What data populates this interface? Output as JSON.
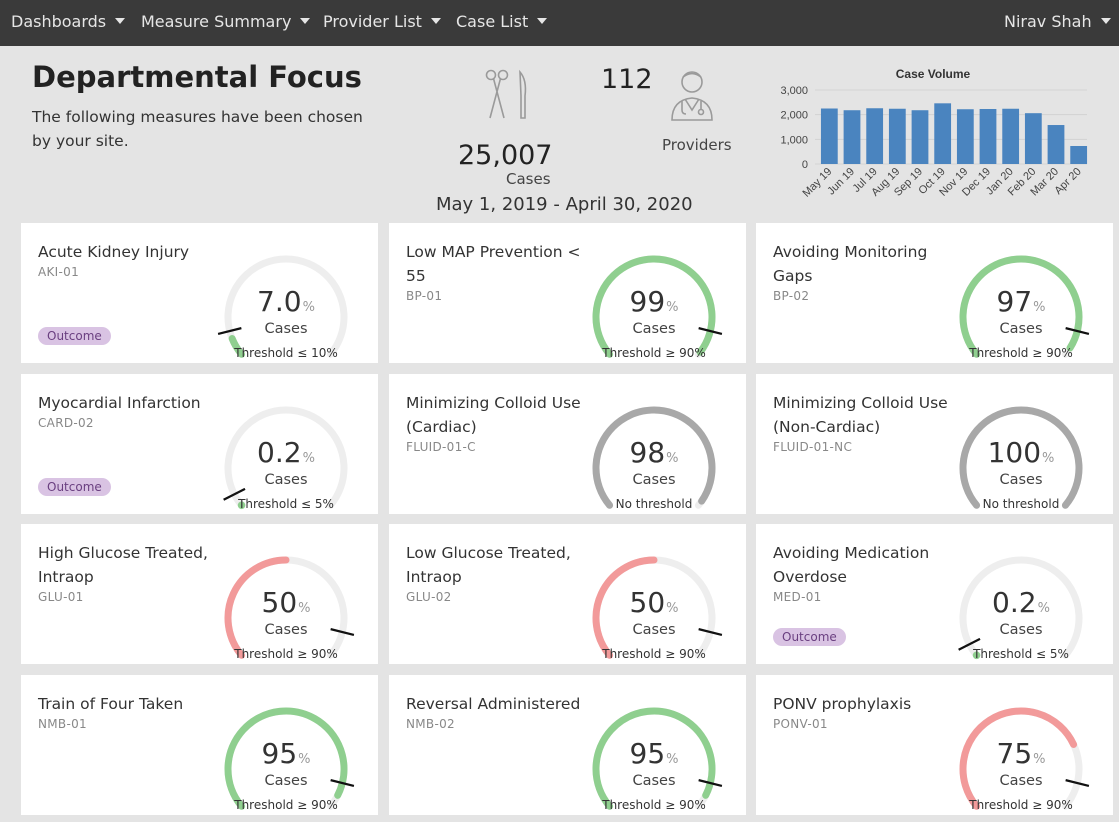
{
  "nav": {
    "items": [
      {
        "label": "Dashboards"
      },
      {
        "label": "Measure Summary"
      },
      {
        "label": "Provider List"
      },
      {
        "label": "Case List"
      }
    ],
    "user": "Nirav Shah"
  },
  "header": {
    "title": "Departmental Focus",
    "subtitle": "The following measures have been chosen by your site.",
    "cases_count": "25,007",
    "cases_label": "Cases",
    "providers_count": "112",
    "providers_label": "Providers",
    "date_range": "May 1, 2019 - April 30, 2020",
    "icons": {
      "cases": "surgical-instruments-icon",
      "providers": "doctor-icon"
    }
  },
  "chart_data": {
    "type": "bar",
    "title": "Case Volume",
    "categories": [
      "May 19",
      "Jun 19",
      "Jul 19",
      "Aug 19",
      "Sep 19",
      "Oct 19",
      "Nov 19",
      "Dec 19",
      "Jan 20",
      "Feb 20",
      "Mar 20",
      "Apr 20"
    ],
    "values": [
      2250,
      2180,
      2260,
      2240,
      2180,
      2460,
      2220,
      2230,
      2240,
      2060,
      1580,
      730
    ],
    "ylim": [
      0,
      3000
    ],
    "yticks": [
      "0",
      "1,000",
      "2,000",
      "3,000"
    ],
    "color": "#4a84bf"
  },
  "colors": {
    "good": "#8fcf8f",
    "bad": "#f29a9a",
    "neutral": "#a8a8a8",
    "track": "#eeeeee"
  },
  "measures": [
    {
      "title": "Acute Kidney Injury",
      "code": "AKI-01",
      "badge": "Outcome",
      "value": "7.0",
      "percent": 7.0,
      "unit": "%",
      "cases_label": "Cases",
      "threshold_text": "Threshold ≤ 10%",
      "threshold": 10,
      "status": "good"
    },
    {
      "title": "Low MAP Prevention < 55",
      "code": "BP-01",
      "badge": "",
      "value": "99",
      "percent": 99,
      "unit": "%",
      "cases_label": "Cases",
      "threshold_text": "Threshold ≥ 90%",
      "threshold": 90,
      "status": "good"
    },
    {
      "title": "Avoiding Monitoring Gaps",
      "code": "BP-02",
      "badge": "",
      "value": "97",
      "percent": 97,
      "unit": "%",
      "cases_label": "Cases",
      "threshold_text": "Threshold ≥ 90%",
      "threshold": 90,
      "status": "good"
    },
    {
      "title": "Myocardial Infarction",
      "code": "CARD-02",
      "badge": "Outcome",
      "value": "0.2",
      "percent": 0.2,
      "unit": "%",
      "cases_label": "Cases",
      "threshold_text": "Threshold ≤ 5%",
      "threshold": 5,
      "status": "good"
    },
    {
      "title": "Minimizing Colloid Use (Cardiac)",
      "code": "FLUID-01-C",
      "badge": "",
      "value": "98",
      "percent": 98,
      "unit": "%",
      "cases_label": "Cases",
      "threshold_text": "No threshold",
      "threshold": null,
      "status": "neutral"
    },
    {
      "title": "Minimizing Colloid Use (Non-Cardiac)",
      "code": "FLUID-01-NC",
      "badge": "",
      "value": "100",
      "percent": 100,
      "unit": "%",
      "cases_label": "Cases",
      "threshold_text": "No threshold",
      "threshold": null,
      "status": "neutral"
    },
    {
      "title": "High Glucose Treated, Intraop",
      "code": "GLU-01",
      "badge": "",
      "value": "50",
      "percent": 50,
      "unit": "%",
      "cases_label": "Cases",
      "threshold_text": "Threshold ≥ 90%",
      "threshold": 90,
      "status": "bad"
    },
    {
      "title": "Low Glucose Treated, Intraop",
      "code": "GLU-02",
      "badge": "",
      "value": "50",
      "percent": 50,
      "unit": "%",
      "cases_label": "Cases",
      "threshold_text": "Threshold ≥ 90%",
      "threshold": 90,
      "status": "bad"
    },
    {
      "title": "Avoiding Medication Overdose",
      "code": "MED-01",
      "badge": "Outcome",
      "value": "0.2",
      "percent": 0.2,
      "unit": "%",
      "cases_label": "Cases",
      "threshold_text": "Threshold ≤ 5%",
      "threshold": 5,
      "status": "good"
    },
    {
      "title": "Train of Four Taken",
      "code": "NMB-01",
      "badge": "",
      "value": "95",
      "percent": 95,
      "unit": "%",
      "cases_label": "Cases",
      "threshold_text": "Threshold ≥ 90%",
      "threshold": 90,
      "status": "good"
    },
    {
      "title": "Reversal Administered",
      "code": "NMB-02",
      "badge": "",
      "value": "95",
      "percent": 95,
      "unit": "%",
      "cases_label": "Cases",
      "threshold_text": "Threshold ≥ 90%",
      "threshold": 90,
      "status": "good"
    },
    {
      "title": "PONV prophylaxis",
      "code": "PONV-01",
      "badge": "",
      "value": "75",
      "percent": 75,
      "unit": "%",
      "cases_label": "Cases",
      "threshold_text": "Threshold ≥ 90%",
      "threshold": 90,
      "status": "bad"
    }
  ]
}
